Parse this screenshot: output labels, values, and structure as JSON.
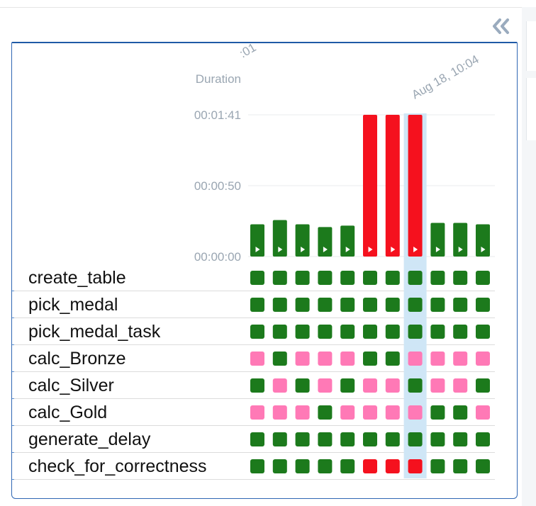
{
  "toolbar": {
    "collapse_icon": "double-chevron-left-icon"
  },
  "colors": {
    "success": "#1c7a1c",
    "failed": "#f5111e",
    "upstream_failed": "#ff79b6",
    "selected_highlight": "#cfe6f6",
    "accent": "#1f5aa6"
  },
  "chart_data": {
    "type": "bar",
    "ylabel": "Duration",
    "yticks": [
      "00:00:00",
      "00:00:50",
      "00:01:41"
    ],
    "ylim_seconds": [
      0,
      101
    ],
    "x_tick_labels": [
      ":01",
      "Aug 18, 10:04"
    ],
    "runs": [
      {
        "duration_s": 23,
        "state": "success"
      },
      {
        "duration_s": 26,
        "state": "success"
      },
      {
        "duration_s": 23,
        "state": "success"
      },
      {
        "duration_s": 21,
        "state": "success"
      },
      {
        "duration_s": 22,
        "state": "success"
      },
      {
        "duration_s": 101,
        "state": "failed"
      },
      {
        "duration_s": 101,
        "state": "failed"
      },
      {
        "duration_s": 101,
        "state": "failed",
        "selected": true
      },
      {
        "duration_s": 24,
        "state": "success"
      },
      {
        "duration_s": 24,
        "state": "success"
      },
      {
        "duration_s": 23,
        "state": "success"
      }
    ]
  },
  "tasks": [
    {
      "name": "create_table",
      "states": [
        "success",
        "success",
        "success",
        "success",
        "success",
        "success",
        "success",
        "success",
        "success",
        "success",
        "success"
      ]
    },
    {
      "name": "pick_medal",
      "states": [
        "success",
        "success",
        "success",
        "success",
        "success",
        "success",
        "success",
        "success",
        "success",
        "success",
        "success"
      ]
    },
    {
      "name": "pick_medal_task",
      "states": [
        "success",
        "success",
        "success",
        "success",
        "success",
        "success",
        "success",
        "success",
        "success",
        "success",
        "success"
      ]
    },
    {
      "name": "calc_Bronze",
      "states": [
        "upstream_failed",
        "success",
        "upstream_failed",
        "upstream_failed",
        "upstream_failed",
        "success",
        "success",
        "upstream_failed",
        "upstream_failed",
        "upstream_failed",
        "upstream_failed"
      ]
    },
    {
      "name": "calc_Silver",
      "states": [
        "success",
        "upstream_failed",
        "success",
        "upstream_failed",
        "success",
        "upstream_failed",
        "upstream_failed",
        "success",
        "upstream_failed",
        "upstream_failed",
        "success"
      ]
    },
    {
      "name": "calc_Gold",
      "states": [
        "upstream_failed",
        "upstream_failed",
        "upstream_failed",
        "success",
        "upstream_failed",
        "upstream_failed",
        "upstream_failed",
        "upstream_failed",
        "success",
        "success",
        "upstream_failed"
      ]
    },
    {
      "name": "generate_delay",
      "states": [
        "success",
        "success",
        "success",
        "success",
        "success",
        "success",
        "success",
        "success",
        "success",
        "success",
        "success"
      ]
    },
    {
      "name": "check_for_correctness",
      "states": [
        "success",
        "success",
        "success",
        "success",
        "success",
        "failed",
        "failed",
        "failed",
        "success",
        "success",
        "success"
      ]
    }
  ]
}
